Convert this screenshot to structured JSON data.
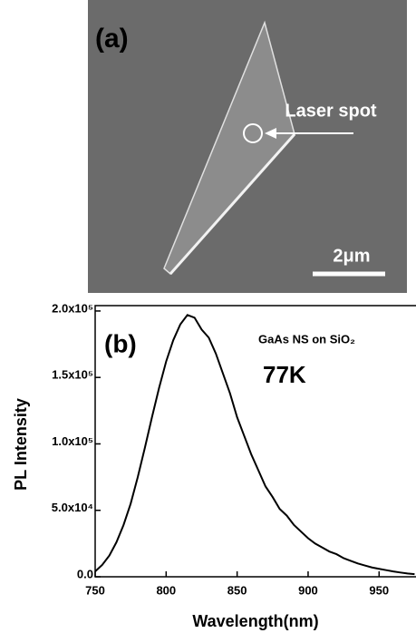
{
  "panel_a": {
    "label": "(a)",
    "annotation": "Laser spot",
    "scale_bar": "2μm"
  },
  "chart_data": {
    "type": "line",
    "panel_label": "(b)",
    "annotations": [
      "GaAs NS on SiO₂",
      "77K"
    ],
    "x_label": "Wavelength(nm)",
    "y_label": "PL Intensity",
    "x": [
      750,
      755,
      760,
      765,
      770,
      775,
      780,
      785,
      790,
      795,
      800,
      805,
      810,
      815,
      820,
      825,
      830,
      835,
      840,
      845,
      850,
      855,
      860,
      865,
      870,
      875,
      880,
      885,
      890,
      895,
      900,
      905,
      910,
      915,
      920,
      925,
      930,
      935,
      940,
      945,
      950,
      955,
      960,
      965,
      970,
      975
    ],
    "series": [
      {
        "color": "#000000",
        "values": [
          4000,
          9000,
          16000,
          26000,
          39000,
          55000,
          75000,
          97000,
          120000,
          142000,
          162000,
          178000,
          190000,
          197000,
          195000,
          186000,
          180000,
          168000,
          153000,
          138000,
          120000,
          106000,
          92000,
          80000,
          68000,
          60000,
          51000,
          46000,
          39000,
          34000,
          29000,
          25000,
          22000,
          19000,
          17000,
          14000,
          12000,
          10000,
          8500,
          7000,
          6000,
          5000,
          4000,
          3200,
          2500,
          2000
        ]
      }
    ],
    "xlim": [
      750,
      976
    ],
    "ylim": [
      0,
      202000
    ],
    "xticks": [
      750,
      800,
      850,
      900,
      950
    ],
    "yticks": [
      {
        "value": 0,
        "label": "0.0"
      },
      {
        "value": 50000,
        "label": "5.0x10⁴"
      },
      {
        "value": 100000,
        "label": "1.0x10⁵"
      },
      {
        "value": 150000,
        "label": "1.5x10⁵"
      },
      {
        "value": 200000,
        "label": "2.0x10⁵"
      }
    ]
  }
}
